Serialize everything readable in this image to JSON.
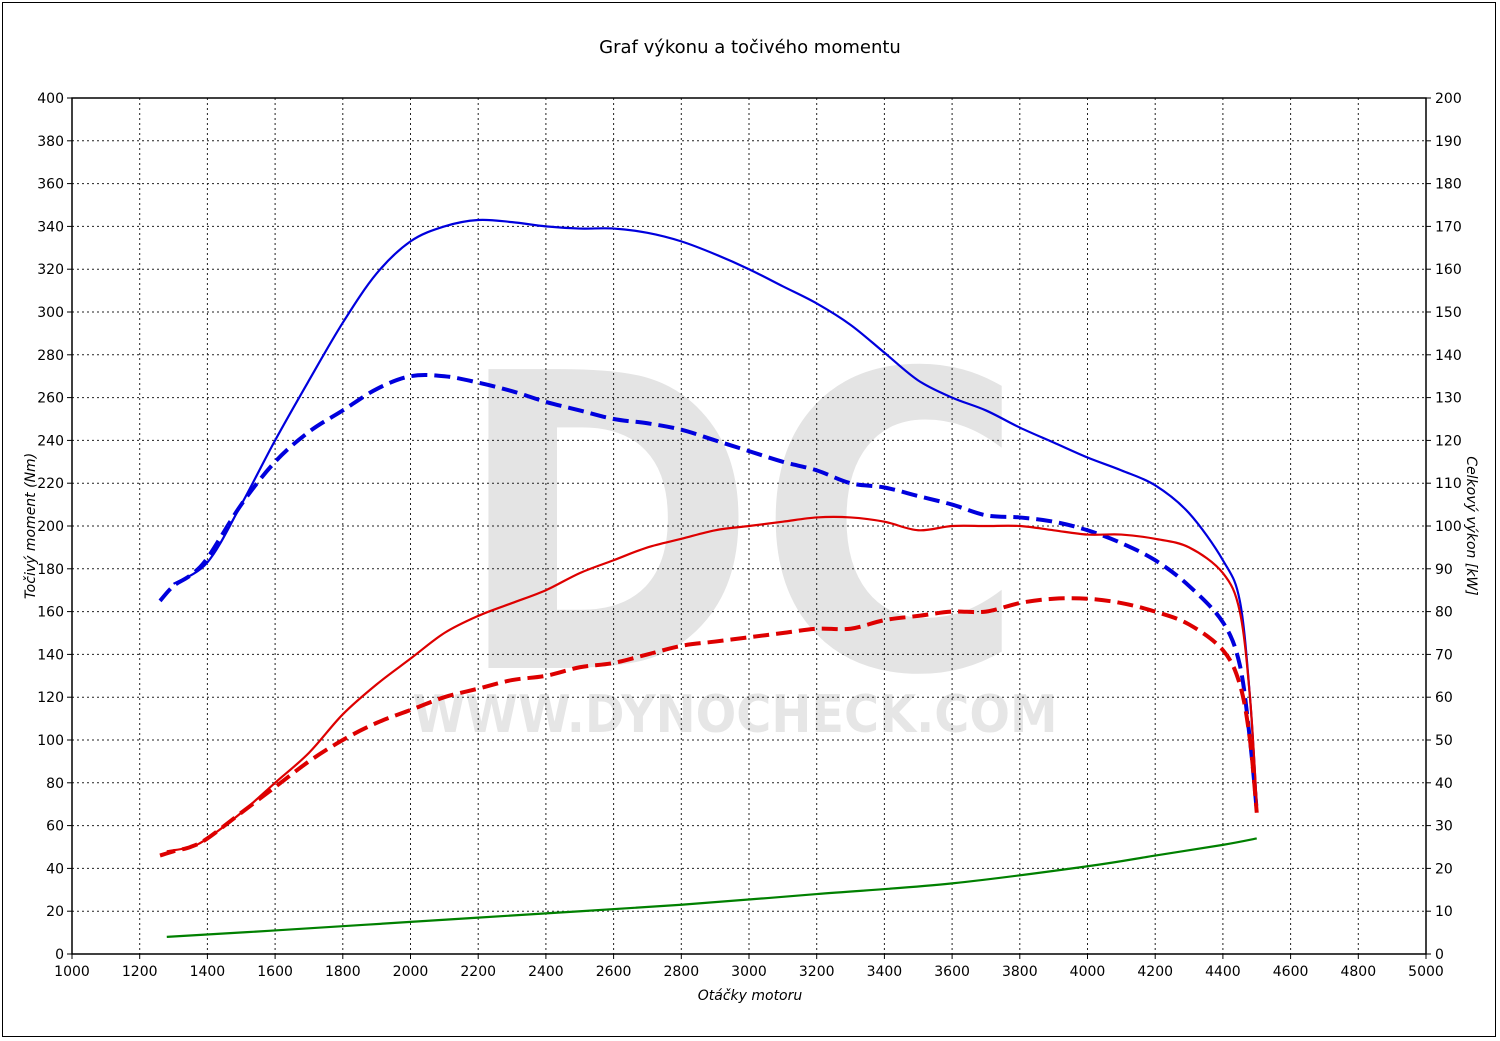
{
  "chart_data": {
    "type": "line",
    "title": "Graf výkonu a točivého momentu",
    "xlabel": "Otáčky motoru",
    "ylabel_left": "Točivý moment (Nm)",
    "ylabel_right": "Celkový výkon [kW]",
    "xlim": [
      1000,
      5000
    ],
    "ylim_left": [
      0,
      400
    ],
    "ylim_right": [
      0,
      200
    ],
    "grid": true,
    "x_ticks": [
      "1000",
      "1200",
      "1400",
      "1600",
      "1800",
      "2000",
      "2200",
      "2400",
      "2600",
      "2800",
      "3000",
      "3200",
      "3400",
      "3600",
      "3800",
      "4000",
      "4200",
      "4400",
      "4600",
      "4800",
      "5000"
    ],
    "y_left_ticks": [
      "0",
      "20",
      "40",
      "60",
      "80",
      "100",
      "120",
      "140",
      "160",
      "180",
      "200",
      "220",
      "240",
      "260",
      "280",
      "300",
      "320",
      "340",
      "360",
      "380",
      "400"
    ],
    "y_right_ticks": [
      "0",
      "10",
      "20",
      "30",
      "40",
      "50",
      "60",
      "70",
      "80",
      "90",
      "100",
      "110",
      "120",
      "130",
      "140",
      "150",
      "160",
      "170",
      "180",
      "190",
      "200"
    ],
    "series": [
      {
        "axis": "left",
        "color": "#0000dd",
        "dash": false,
        "x": [
          1300,
          1400,
          1500,
          1600,
          1700,
          1800,
          1900,
          2000,
          2100,
          2200,
          2300,
          2400,
          2500,
          2600,
          2700,
          2800,
          2900,
          3000,
          3100,
          3200,
          3300,
          3400,
          3500,
          3600,
          3700,
          3800,
          3900,
          4000,
          4100,
          4200,
          4300,
          4400,
          4450,
          4480,
          4500
        ],
        "values": [
          173,
          183,
          210,
          240,
          268,
          295,
          318,
          333,
          340,
          343,
          342,
          340,
          339,
          339,
          337,
          333,
          327,
          320,
          312,
          304,
          294,
          281,
          268,
          260,
          254,
          246,
          239,
          232,
          226,
          219,
          206,
          184,
          165,
          120,
          70
        ]
      },
      {
        "axis": "left",
        "color": "#0000dd",
        "dash": true,
        "x": [
          1260,
          1300,
          1350,
          1400,
          1500,
          1600,
          1700,
          1800,
          1900,
          2000,
          2100,
          2200,
          2300,
          2400,
          2500,
          2600,
          2700,
          2800,
          2900,
          3000,
          3100,
          3200,
          3300,
          3400,
          3500,
          3600,
          3700,
          3800,
          3900,
          4000,
          4100,
          4200,
          4300,
          4400,
          4450,
          4480,
          4500
        ],
        "values": [
          165,
          172,
          177,
          185,
          210,
          230,
          244,
          254,
          264,
          270,
          270,
          267,
          263,
          258,
          254,
          250,
          248,
          245,
          240,
          235,
          230,
          226,
          220,
          218,
          214,
          210,
          205,
          204,
          202,
          198,
          192,
          184,
          172,
          155,
          135,
          100,
          67
        ]
      },
      {
        "axis": "right",
        "color": "#dd0000",
        "dash": false,
        "x": [
          1280,
          1350,
          1400,
          1500,
          1600,
          1700,
          1800,
          1900,
          2000,
          2100,
          2200,
          2300,
          2400,
          2500,
          2600,
          2700,
          2800,
          2900,
          3000,
          3100,
          3200,
          3300,
          3400,
          3500,
          3600,
          3700,
          3800,
          3900,
          4000,
          4100,
          4200,
          4300,
          4400,
          4450,
          4480,
          4500
        ],
        "values": [
          24,
          25,
          27,
          33,
          40,
          47,
          56,
          63,
          69,
          75,
          79,
          82,
          85,
          89,
          92,
          95,
          97,
          99,
          100,
          101,
          102,
          102,
          101,
          99,
          100,
          100,
          100,
          99,
          98,
          98,
          97,
          95,
          89,
          80,
          60,
          35
        ]
      },
      {
        "axis": "right",
        "color": "#dd0000",
        "dash": true,
        "x": [
          1260,
          1300,
          1350,
          1400,
          1500,
          1600,
          1700,
          1800,
          1900,
          2000,
          2100,
          2200,
          2300,
          2400,
          2500,
          2600,
          2700,
          2800,
          2900,
          3000,
          3100,
          3200,
          3300,
          3400,
          3500,
          3600,
          3700,
          3800,
          3900,
          4000,
          4100,
          4200,
          4300,
          4400,
          4450,
          4480,
          4500
        ],
        "values": [
          23,
          24,
          25,
          27,
          33,
          39,
          45,
          50,
          54,
          57,
          60,
          62,
          64,
          65,
          67,
          68,
          70,
          72,
          73,
          74,
          75,
          76,
          76,
          78,
          79,
          80,
          80,
          82,
          83,
          83,
          82,
          80,
          77,
          71,
          63,
          50,
          33
        ]
      },
      {
        "axis": "left",
        "color": "#008000",
        "dash": false,
        "x": [
          1280,
          1600,
          2000,
          2400,
          2800,
          3200,
          3600,
          4000,
          4200,
          4400,
          4500
        ],
        "values": [
          8,
          11,
          15,
          19,
          23,
          28,
          33,
          41,
          46,
          51,
          54
        ]
      }
    ]
  },
  "watermark": {
    "logo": "DC",
    "url": "WWW.DYNOCHECK.COM"
  }
}
